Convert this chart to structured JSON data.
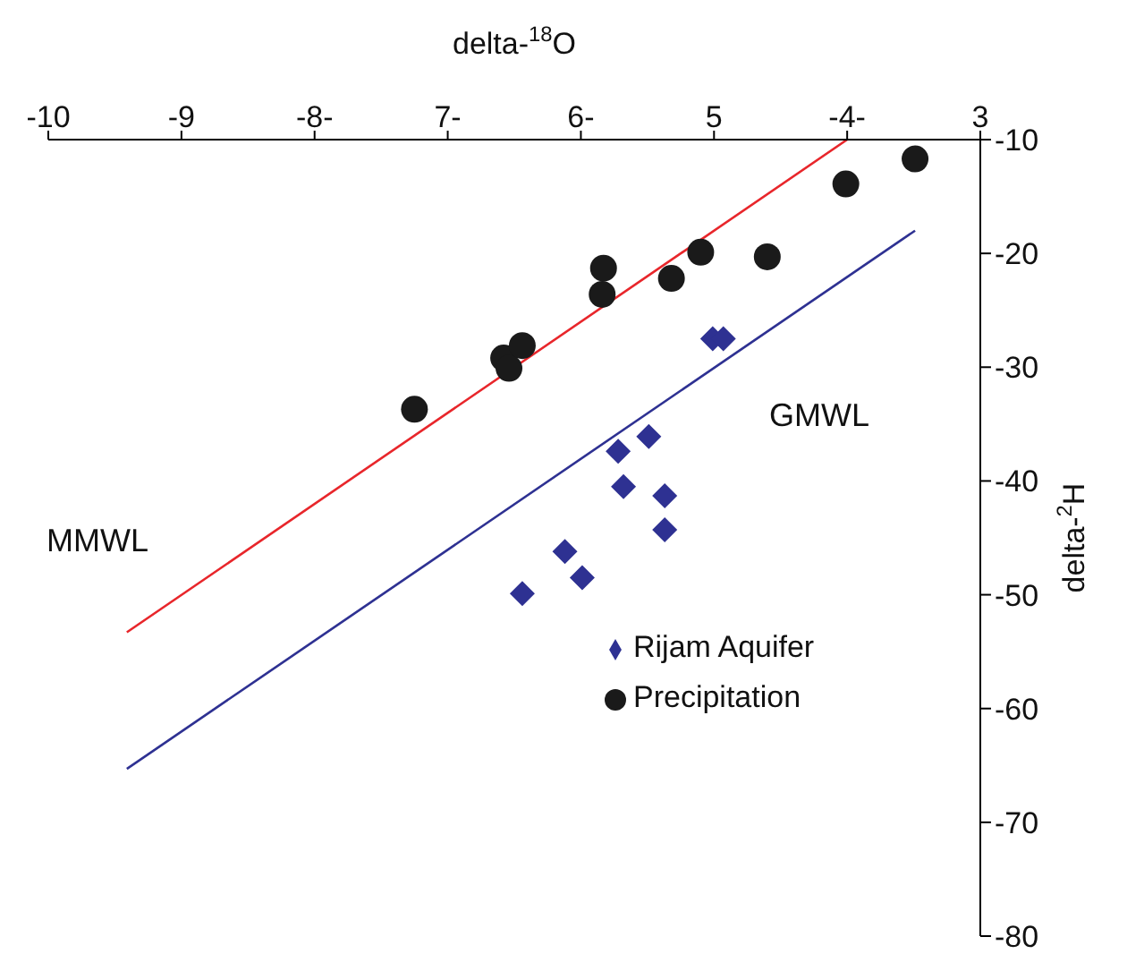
{
  "chart_data": {
    "type": "scatter",
    "xlabel": "delta-$^{18}$O",
    "ylabel": "delta-$^{2}$H",
    "xlim": [
      -10,
      -3
    ],
    "xticks": [
      {
        "value": -10,
        "label": "-10"
      },
      {
        "value": -9,
        "label": "-9"
      },
      {
        "value": -8,
        "label": "-8-"
      },
      {
        "value": -7,
        "label": "7-"
      },
      {
        "value": -6,
        "label": "6-"
      },
      {
        "value": -5,
        "label": "5"
      },
      {
        "value": -4,
        "label": "-4-"
      },
      {
        "value": -3,
        "label": "3"
      }
    ],
    "ylim": [
      -80,
      -10
    ],
    "yticks": [
      -10,
      -20,
      -30,
      -40,
      -50,
      -60,
      -70,
      -80
    ],
    "series": [
      {
        "type": "line",
        "color": "#e8262b",
        "x": [
          -9.41,
          -4.0
        ],
        "values": [
          -53.3,
          -10
        ]
      },
      {
        "type": "line",
        "color": "#2e3192",
        "x": [
          -9.41,
          -3.49
        ],
        "values": [
          -65.3,
          -18.0
        ]
      },
      {
        "name": "Rijam Aquifer",
        "color": "#2e3192",
        "marker": "diamond",
        "x": [
          -5.01,
          -4.93,
          -5.72,
          -5.49,
          -5.68,
          -5.37,
          -5.37,
          -6.12,
          -5.99,
          -6.44
        ],
        "values": [
          -27.5,
          -27.5,
          -37.4,
          -36.1,
          -40.5,
          -41.3,
          -44.3,
          -46.2,
          -48.5,
          -49.9
        ]
      },
      {
        "name": "Precipitation",
        "color": "#1a1a1a",
        "marker": "circle",
        "x": [
          -7.25,
          -6.58,
          -6.54,
          -6.44,
          -5.83,
          -5.84,
          -5.32,
          -5.1,
          -4.6,
          -4.01,
          -3.49
        ],
        "values": [
          -33.7,
          -29.2,
          -30.1,
          -28.1,
          -21.3,
          -23.6,
          -22.2,
          -19.9,
          -20.3,
          -13.9,
          -11.7
        ]
      }
    ],
    "annotations": [
      "MMWL",
      "GMWL"
    ],
    "legend": "bottom right",
    "grid": false
  }
}
